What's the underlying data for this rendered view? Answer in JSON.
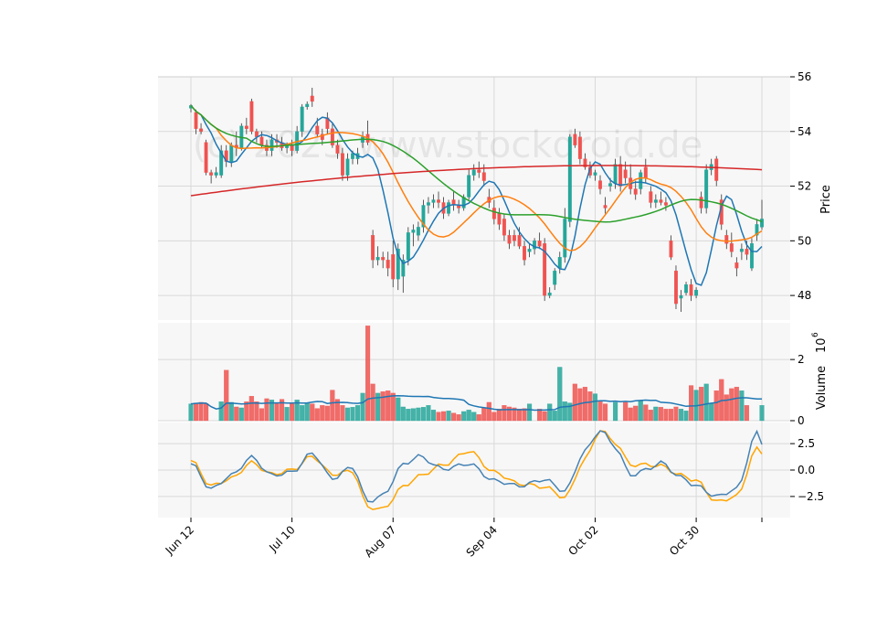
{
  "chart_data": {
    "type": "candlestick",
    "watermark": "(c) 2023 www.stockdroid.de",
    "x_tick_labels": [
      "Jun 12",
      "Jul 10",
      "Aug 07",
      "Sep 04",
      "Oct 02",
      "Oct 30"
    ],
    "price_panel": {
      "ylabel": "Price",
      "ylim": [
        47.1,
        56
      ],
      "yticks": [
        48,
        50,
        52,
        54,
        56
      ],
      "candles": [
        [
          54.85,
          55.0,
          54.7,
          54.95
        ],
        [
          54.7,
          54.8,
          53.9,
          54.1
        ],
        [
          54.1,
          54.3,
          53.9,
          54.0
        ],
        [
          53.6,
          53.7,
          52.4,
          52.5
        ],
        [
          52.5,
          52.6,
          52.1,
          52.4
        ],
        [
          52.4,
          52.7,
          52.3,
          52.5
        ],
        [
          52.4,
          53.5,
          52.3,
          53.3
        ],
        [
          53.3,
          53.5,
          52.7,
          52.9
        ],
        [
          52.9,
          53.6,
          52.7,
          53.5
        ],
        [
          53.5,
          54.0,
          53.1,
          53.4
        ],
        [
          53.4,
          54.3,
          53.3,
          54.2
        ],
        [
          54.2,
          54.5,
          53.9,
          54.1
        ],
        [
          55.1,
          55.2,
          53.9,
          54.0
        ],
        [
          54.0,
          54.1,
          53.6,
          53.8
        ],
        [
          53.8,
          54.0,
          53.4,
          53.5
        ],
        [
          53.5,
          53.7,
          53.1,
          53.3
        ],
        [
          53.3,
          53.9,
          53.1,
          53.7
        ],
        [
          53.7,
          53.9,
          53.4,
          53.6
        ],
        [
          53.6,
          53.8,
          53.3,
          53.4
        ],
        [
          53.4,
          53.6,
          53.2,
          53.5
        ],
        [
          53.5,
          53.7,
          53.1,
          53.3
        ],
        [
          53.3,
          54.2,
          53.2,
          54.0
        ],
        [
          54.0,
          55.0,
          53.8,
          54.9
        ],
        [
          54.9,
          55.1,
          54.8,
          55.0
        ],
        [
          55.3,
          55.6,
          54.9,
          55.1
        ],
        [
          54.2,
          54.5,
          53.8,
          53.9
        ],
        [
          53.9,
          54.1,
          53.5,
          53.7
        ],
        [
          54.5,
          54.7,
          53.9,
          54.1
        ],
        [
          54.1,
          54.3,
          53.4,
          53.5
        ],
        [
          53.5,
          53.7,
          53.0,
          53.2
        ],
        [
          53.2,
          53.4,
          52.2,
          52.4
        ],
        [
          52.4,
          53.2,
          52.2,
          53.0
        ],
        [
          53.0,
          53.3,
          52.8,
          53.2
        ],
        [
          53.0,
          53.4,
          52.8,
          53.2
        ],
        [
          53.6,
          54.0,
          53.4,
          53.8
        ],
        [
          53.9,
          54.4,
          53.5,
          53.6
        ],
        [
          50.2,
          50.4,
          49.0,
          49.3
        ],
        [
          49.3,
          49.8,
          49.1,
          49.4
        ],
        [
          49.4,
          49.6,
          49.0,
          49.3
        ],
        [
          49.3,
          49.6,
          48.7,
          49.0
        ],
        [
          49.5,
          50.0,
          48.3,
          48.6
        ],
        [
          48.6,
          49.9,
          48.2,
          49.7
        ],
        [
          48.7,
          49.5,
          48.1,
          49.3
        ],
        [
          49.3,
          50.5,
          49.1,
          50.3
        ],
        [
          50.3,
          50.6,
          49.8,
          50.4
        ],
        [
          50.2,
          50.7,
          50.0,
          50.5
        ],
        [
          50.5,
          51.5,
          50.3,
          51.3
        ],
        [
          51.3,
          51.6,
          51.0,
          51.4
        ],
        [
          51.4,
          51.7,
          51.2,
          51.5
        ],
        [
          51.5,
          51.8,
          51.2,
          51.4
        ],
        [
          51.4,
          51.6,
          50.8,
          51.0
        ],
        [
          51.0,
          51.5,
          50.9,
          51.4
        ],
        [
          51.5,
          51.8,
          51.1,
          51.3
        ],
        [
          51.3,
          51.5,
          51.0,
          51.2
        ],
        [
          51.2,
          51.7,
          51.1,
          51.6
        ],
        [
          51.6,
          52.6,
          51.5,
          52.4
        ],
        [
          52.4,
          52.8,
          52.2,
          52.6
        ],
        [
          52.6,
          52.9,
          52.3,
          52.5
        ],
        [
          52.5,
          52.8,
          52.0,
          52.2
        ],
        [
          51.6,
          51.9,
          51.2,
          51.4
        ],
        [
          51.2,
          51.5,
          50.6,
          50.8
        ],
        [
          51.0,
          51.2,
          50.4,
          50.6
        ],
        [
          50.8,
          51.0,
          50.0,
          50.2
        ],
        [
          50.2,
          50.4,
          49.7,
          49.9
        ],
        [
          50.2,
          50.4,
          49.8,
          50.0
        ],
        [
          50.2,
          50.5,
          49.7,
          49.8
        ],
        [
          49.8,
          50.0,
          49.1,
          49.3
        ],
        [
          49.6,
          49.9,
          49.4,
          49.7
        ],
        [
          49.7,
          50.1,
          49.5,
          50.0
        ],
        [
          50.0,
          50.3,
          49.7,
          49.8
        ],
        [
          49.9,
          50.1,
          47.8,
          48.0
        ],
        [
          48.0,
          48.3,
          47.9,
          48.1
        ],
        [
          48.4,
          49.0,
          48.2,
          48.9
        ],
        [
          49.0,
          49.6,
          48.8,
          49.4
        ],
        [
          49.4,
          51.2,
          49.2,
          50.8
        ],
        [
          50.7,
          53.9,
          50.5,
          53.8
        ],
        [
          53.9,
          54.1,
          53.4,
          53.5
        ],
        [
          53.8,
          54.0,
          52.8,
          53.0
        ],
        [
          53.0,
          53.2,
          52.6,
          52.7
        ],
        [
          52.7,
          52.9,
          52.3,
          52.4
        ],
        [
          52.4,
          52.6,
          52.2,
          52.5
        ],
        [
          52.2,
          52.4,
          51.7,
          51.9
        ],
        [
          51.3,
          51.6,
          51.0,
          51.2
        ],
        [
          52.0,
          52.3,
          51.8,
          52.1
        ],
        [
          52.1,
          53.0,
          51.9,
          52.8
        ],
        [
          52.8,
          53.1,
          51.8,
          52.0
        ],
        [
          52.6,
          52.9,
          52.1,
          52.3
        ],
        [
          52.3,
          52.8,
          51.7,
          51.9
        ],
        [
          51.9,
          52.2,
          51.5,
          51.7
        ],
        [
          51.9,
          52.6,
          51.7,
          52.5
        ],
        [
          52.7,
          53.0,
          52.1,
          52.3
        ],
        [
          51.8,
          52.0,
          51.2,
          51.4
        ],
        [
          51.4,
          51.7,
          51.2,
          51.5
        ],
        [
          51.5,
          51.8,
          51.3,
          51.4
        ],
        [
          51.4,
          51.6,
          51.1,
          51.3
        ],
        [
          50.0,
          50.2,
          49.3,
          49.4
        ],
        [
          48.9,
          49.1,
          47.5,
          47.7
        ],
        [
          47.9,
          48.2,
          47.4,
          48.0
        ],
        [
          48.1,
          48.5,
          48.0,
          48.4
        ],
        [
          48.4,
          48.6,
          47.8,
          48.0
        ],
        [
          48.0,
          48.3,
          47.9,
          48.2
        ],
        [
          51.6,
          51.8,
          51.0,
          51.2
        ],
        [
          51.2,
          52.8,
          51.0,
          52.6
        ],
        [
          52.6,
          53.0,
          52.4,
          52.8
        ],
        [
          53.0,
          53.1,
          52.0,
          52.2
        ],
        [
          51.5,
          51.7,
          50.4,
          50.6
        ],
        [
          50.2,
          50.4,
          49.7,
          49.9
        ],
        [
          49.9,
          50.3,
          49.4,
          49.6
        ],
        [
          49.2,
          49.4,
          48.7,
          49.0
        ],
        [
          49.6,
          49.9,
          49.3,
          49.7
        ],
        [
          49.7,
          50.0,
          49.3,
          49.5
        ],
        [
          49.0,
          50.1,
          48.9,
          49.9
        ],
        [
          50.2,
          50.8,
          50.0,
          50.6
        ],
        [
          50.5,
          51.5,
          50.4,
          50.8
        ]
      ]
    },
    "volume_panel": {
      "ylabel": "Volume",
      "ylabel_exponent": "6",
      "ylim": [
        0,
        3.2
      ],
      "yticks": [
        0,
        2
      ],
      "values": [
        0.55,
        0.58,
        0.6,
        0.56,
        0.0,
        0.0,
        0.62,
        1.65,
        0.6,
        0.45,
        0.42,
        0.62,
        0.8,
        0.62,
        0.4,
        0.72,
        0.68,
        0.56,
        0.7,
        0.44,
        0.55,
        0.68,
        0.5,
        0.58,
        0.55,
        0.4,
        0.5,
        0.48,
        1.0,
        0.7,
        0.5,
        0.42,
        0.44,
        0.5,
        0.9,
        3.1,
        1.2,
        0.9,
        0.95,
        0.98,
        0.9,
        0.75,
        0.45,
        0.38,
        0.4,
        0.42,
        0.44,
        0.5,
        0.35,
        0.28,
        0.3,
        0.32,
        0.25,
        0.2,
        0.3,
        0.35,
        0.28,
        0.2,
        0.42,
        0.6,
        0.28,
        0.38,
        0.5,
        0.45,
        0.42,
        0.38,
        0.4,
        0.55,
        0.0,
        0.38,
        0.3,
        0.55,
        0.32,
        1.75,
        0.62,
        0.58,
        1.2,
        1.05,
        1.1,
        0.95,
        0.88,
        0.62,
        0.55,
        0.0,
        0.6,
        0.0,
        0.6,
        0.42,
        0.48,
        0.64,
        0.52,
        0.35,
        0.45,
        0.44,
        0.38,
        0.38,
        0.45,
        0.38,
        0.32,
        1.15,
        1.0,
        1.1,
        1.2,
        0.55,
        0.98,
        1.35,
        0.85,
        1.05,
        1.1,
        0.98,
        0.5,
        0.0,
        0.0,
        0.5,
        0.55,
        0.0,
        0.6,
        0.5
      ]
    },
    "oscillator_panel": {
      "ylim": [
        -4.5,
        4.5
      ],
      "yticks": [
        -2.5,
        0.0,
        2.5
      ],
      "macd_anchors": [
        [
          0,
          0.6
        ],
        [
          4,
          -1.8
        ],
        [
          8,
          -0.5
        ],
        [
          12,
          1.2
        ],
        [
          16,
          -0.5
        ],
        [
          20,
          -0.2
        ],
        [
          24,
          1.6
        ],
        [
          28,
          -0.8
        ],
        [
          32,
          0.3
        ],
        [
          35,
          -3.0
        ],
        [
          38,
          -2.4
        ],
        [
          42,
          0.5
        ],
        [
          45,
          1.3
        ],
        [
          50,
          0.1
        ],
        [
          55,
          0.6
        ],
        [
          60,
          -1.0
        ],
        [
          65,
          -1.5
        ],
        [
          70,
          -0.9
        ],
        [
          74,
          -2.0
        ],
        [
          78,
          1.8
        ],
        [
          81,
          3.8
        ],
        [
          84,
          2.2
        ],
        [
          87,
          -0.5
        ],
        [
          90,
          0.0
        ],
        [
          93,
          0.7
        ],
        [
          97,
          -0.7
        ],
        [
          100,
          -1.5
        ],
        [
          104,
          -2.5
        ],
        [
          108,
          -1.8
        ],
        [
          112,
          3.5
        ],
        [
          114,
          1.5
        ],
        [
          117,
          -0.5
        ],
        [
          121,
          -1.3
        ],
        [
          123,
          -0.5
        ],
        [
          125,
          0.9
        ]
      ],
      "signal_anchors": [
        [
          0,
          0.9
        ],
        [
          4,
          -1.5
        ],
        [
          8,
          -0.8
        ],
        [
          12,
          0.7
        ],
        [
          16,
          -0.4
        ],
        [
          20,
          0.0
        ],
        [
          24,
          1.3
        ],
        [
          28,
          -0.4
        ],
        [
          32,
          -0.1
        ],
        [
          35,
          -3.5
        ],
        [
          38,
          -3.7
        ],
        [
          42,
          -1.6
        ],
        [
          45,
          -0.6
        ],
        [
          50,
          0.5
        ],
        [
          55,
          1.8
        ],
        [
          60,
          -0.2
        ],
        [
          65,
          -1.3
        ],
        [
          70,
          -1.6
        ],
        [
          74,
          -2.6
        ],
        [
          78,
          1.0
        ],
        [
          81,
          3.8
        ],
        [
          84,
          2.6
        ],
        [
          87,
          0.5
        ],
        [
          90,
          0.5
        ],
        [
          93,
          0.4
        ],
        [
          97,
          -0.5
        ],
        [
          100,
          -1.0
        ],
        [
          104,
          -3.0
        ],
        [
          108,
          -2.5
        ],
        [
          112,
          2.0
        ],
        [
          114,
          1.2
        ],
        [
          117,
          -0.5
        ],
        [
          121,
          -0.9
        ],
        [
          123,
          -0.2
        ],
        [
          125,
          0.9
        ]
      ]
    },
    "colors": {
      "up": "#26a69a",
      "down": "#ef5350",
      "panel_bg": "#f7f7f7",
      "grid": "#d9d9d9",
      "ma_fast": "#1f77b4",
      "ma_mid": "#ff7f0e",
      "ma_slow": "#2ca02c",
      "ma_long": "#d62728",
      "macd": "#4682b4",
      "signal": "#ffa500",
      "volume_ma": "#1f77b4"
    }
  }
}
